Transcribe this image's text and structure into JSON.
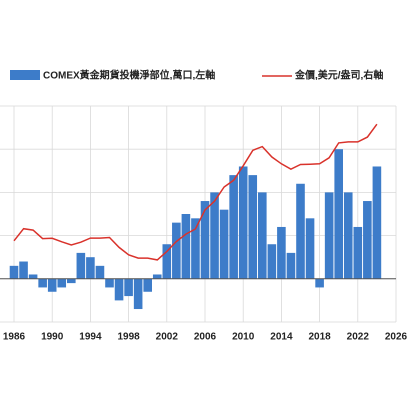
{
  "chart_data": {
    "type": "bar-line",
    "x": [
      1986,
      1987,
      1988,
      1989,
      1990,
      1991,
      1992,
      1993,
      1994,
      1995,
      1996,
      1997,
      1998,
      1999,
      2000,
      2001,
      2002,
      2003,
      2004,
      2005,
      2006,
      2007,
      2008,
      2009,
      2010,
      2011,
      2012,
      2013,
      2014,
      2015,
      2016,
      2017,
      2018,
      2019,
      2020,
      2021,
      2022,
      2023,
      2024
    ],
    "series": [
      {
        "name": "COMEX黃金期貨投機淨部位,萬口,左軸",
        "type": "bar",
        "color": "#3d7cc9",
        "values": [
          3,
          4,
          1,
          -2,
          -3,
          -2,
          -1,
          6,
          5,
          3,
          -2,
          -5,
          -4,
          -7,
          -3,
          1,
          8,
          13,
          15,
          14,
          18,
          20,
          16,
          24,
          26,
          24,
          20,
          8,
          12,
          6,
          22,
          14,
          -2,
          20,
          30,
          20,
          12,
          18,
          26
        ]
      },
      {
        "name": "金價,美元/盎司,右軸",
        "type": "line",
        "axis": "y2",
        "color": "#d9322b",
        "values": [
          368,
          447,
          437,
          381,
          383,
          362,
          344,
          360,
          384,
          384,
          388,
          331,
          294,
          279,
          279,
          271,
          310,
          364,
          410,
          445,
          604,
          696,
          872,
          972,
          1225,
          1572,
          1669,
          1411,
          1266,
          1160,
          1251,
          1257,
          1268,
          1393,
          1770,
          1799,
          1800,
          1943,
          2390
        ]
      }
    ],
    "xlim": [
      1986,
      2026
    ],
    "xticks": [
      1986,
      1990,
      1994,
      1998,
      2002,
      2006,
      2010,
      2014,
      2018,
      2022,
      2026
    ],
    "ylim": [
      -10,
      40
    ],
    "yticks": [
      -10,
      0,
      10,
      20,
      30,
      40
    ],
    "y2lim": [
      100,
      3200
    ],
    "y2log": true,
    "grid": true
  }
}
